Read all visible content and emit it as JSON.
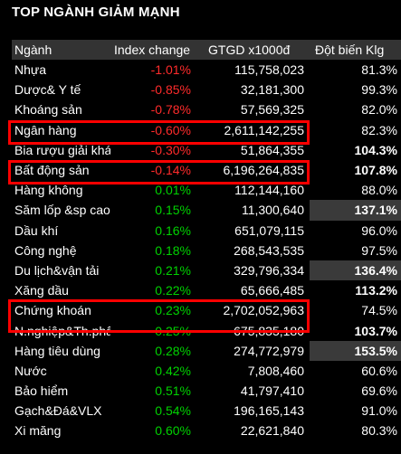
{
  "title": "TOP NGÀNH GIẢM MẠNH",
  "columns": [
    "Ngành",
    "Index change",
    "GTGD x1000đ",
    "Đột biến Klg"
  ],
  "colors": {
    "negative": "#ff2b2b",
    "positive": "#00d200",
    "highlight_box": "#ff0000"
  },
  "rows": [
    {
      "name": "Nhựa",
      "change": "-1.01%",
      "value": "115,758,023",
      "klg": "81.3%",
      "dir": "neg",
      "style": ""
    },
    {
      "name": "Dược& Y tế",
      "change": "-0.85%",
      "value": "32,181,300",
      "klg": "99.3%",
      "dir": "neg",
      "style": ""
    },
    {
      "name": "Khoáng sản",
      "change": "-0.78%",
      "value": "57,569,325",
      "klg": "82.0%",
      "dir": "neg",
      "style": ""
    },
    {
      "name": "Ngân hàng",
      "change": "-0.60%",
      "value": "2,611,142,255",
      "klg": "82.3%",
      "dir": "neg",
      "style": ""
    },
    {
      "name": "Bia rượu giải khát",
      "change": "-0.30%",
      "value": "51,864,355",
      "klg": "104.3%",
      "dir": "neg",
      "style": "bold"
    },
    {
      "name": "Bất động sản",
      "change": "-0.14%",
      "value": "6,196,264,835",
      "klg": "107.8%",
      "dir": "neg",
      "style": "bold"
    },
    {
      "name": "Hàng không",
      "change": "0.01%",
      "value": "112,144,160",
      "klg": "88.0%",
      "dir": "pos",
      "style": ""
    },
    {
      "name": "Săm lốp &sp cao su",
      "change": "0.15%",
      "value": "11,300,640",
      "klg": "137.1%",
      "dir": "pos",
      "style": "hl"
    },
    {
      "name": "Dầu khí",
      "change": "0.16%",
      "value": "651,079,115",
      "klg": "96.0%",
      "dir": "pos",
      "style": ""
    },
    {
      "name": "Công nghệ",
      "change": "0.18%",
      "value": "268,543,535",
      "klg": "97.5%",
      "dir": "pos",
      "style": ""
    },
    {
      "name": "Du lịch&vận tải",
      "change": "0.21%",
      "value": "329,796,334",
      "klg": "136.4%",
      "dir": "pos",
      "style": "hl"
    },
    {
      "name": "Xăng dầu",
      "change": "0.22%",
      "value": "65,666,485",
      "klg": "113.2%",
      "dir": "pos",
      "style": "bold"
    },
    {
      "name": "Chứng khoán",
      "change": "0.23%",
      "value": "2,702,052,963",
      "klg": "74.5%",
      "dir": "pos",
      "style": ""
    },
    {
      "name": "N.nghiệp&Th.phẩm",
      "change": "0.25%",
      "value": "675,835,180",
      "klg": "103.7%",
      "dir": "pos",
      "style": "bold"
    },
    {
      "name": "Hàng tiêu dùng",
      "change": "0.28%",
      "value": "274,772,979",
      "klg": "153.5%",
      "dir": "pos",
      "style": "hl"
    },
    {
      "name": "Nước",
      "change": "0.42%",
      "value": "7,808,460",
      "klg": "60.6%",
      "dir": "pos",
      "style": ""
    },
    {
      "name": "Bảo hiểm",
      "change": "0.51%",
      "value": "41,797,410",
      "klg": "69.6%",
      "dir": "pos",
      "style": ""
    },
    {
      "name": "Gạch&Đá&VLX",
      "change": "0.54%",
      "value": "196,165,143",
      "klg": "91.0%",
      "dir": "pos",
      "style": ""
    },
    {
      "name": "Xi măng",
      "change": "0.60%",
      "value": "22,621,840",
      "klg": "80.3%",
      "dir": "pos",
      "style": ""
    }
  ]
}
